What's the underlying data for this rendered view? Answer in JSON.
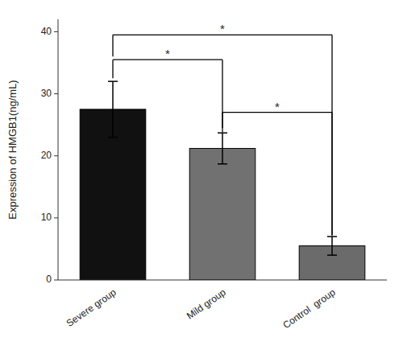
{
  "chart_data": {
    "type": "bar",
    "ylabel": "Expression of HMGB1(ng/mL)",
    "categories": [
      "Severe group",
      "Mild group",
      "Control  group"
    ],
    "values": [
      27.5,
      21.2,
      5.5
    ],
    "errors": [
      4.5,
      2.5,
      1.5
    ],
    "colors": [
      "#111111",
      "#717171",
      "#6b6b6b"
    ],
    "ylim": [
      0,
      42
    ],
    "yticks": [
      0,
      10,
      20,
      30,
      40
    ],
    "grid": false,
    "annotations": [
      {
        "between": [
          "Severe group",
          "Mild group"
        ],
        "y_left": 32.5,
        "y_right": 23.8,
        "y_top": 35.5,
        "label": "*"
      },
      {
        "between": [
          "Severe group",
          "Control  group"
        ],
        "y_left": 36.0,
        "y_right": 7.2,
        "y_top": 39.5,
        "label": "*"
      },
      {
        "between": [
          "Mild group",
          "Control  group"
        ],
        "y_left": 24.5,
        "y_right": 7.2,
        "y_top": 27.0,
        "label": "*"
      }
    ]
  }
}
